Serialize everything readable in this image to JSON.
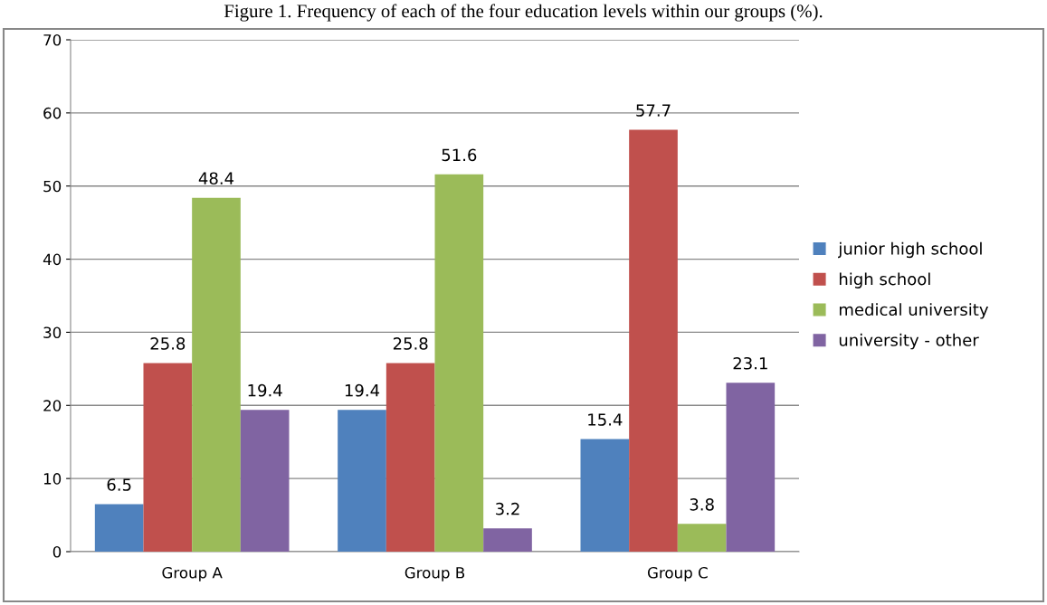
{
  "chart_data": {
    "type": "bar",
    "title": "Figure 1. Frequency of each of the four education levels within our groups (%).",
    "categories": [
      "Group A",
      "Group B",
      "Group C"
    ],
    "series": [
      {
        "name": "junior high school",
        "color": "#4f81bd",
        "values": [
          6.5,
          19.4,
          15.4
        ]
      },
      {
        "name": "high school",
        "color": "#c0504d",
        "values": [
          25.8,
          25.8,
          57.7
        ]
      },
      {
        "name": "medical university",
        "color": "#9bbb59",
        "values": [
          48.4,
          51.6,
          3.8
        ]
      },
      {
        "name": "university - other",
        "color": "#8064a2",
        "values": [
          19.4,
          3.2,
          23.1
        ]
      }
    ],
    "ylim": [
      0,
      70
    ],
    "yticks": [
      0,
      10,
      20,
      30,
      40,
      50,
      60,
      70
    ],
    "grid": "y",
    "legend": "right",
    "data_labels": true
  }
}
